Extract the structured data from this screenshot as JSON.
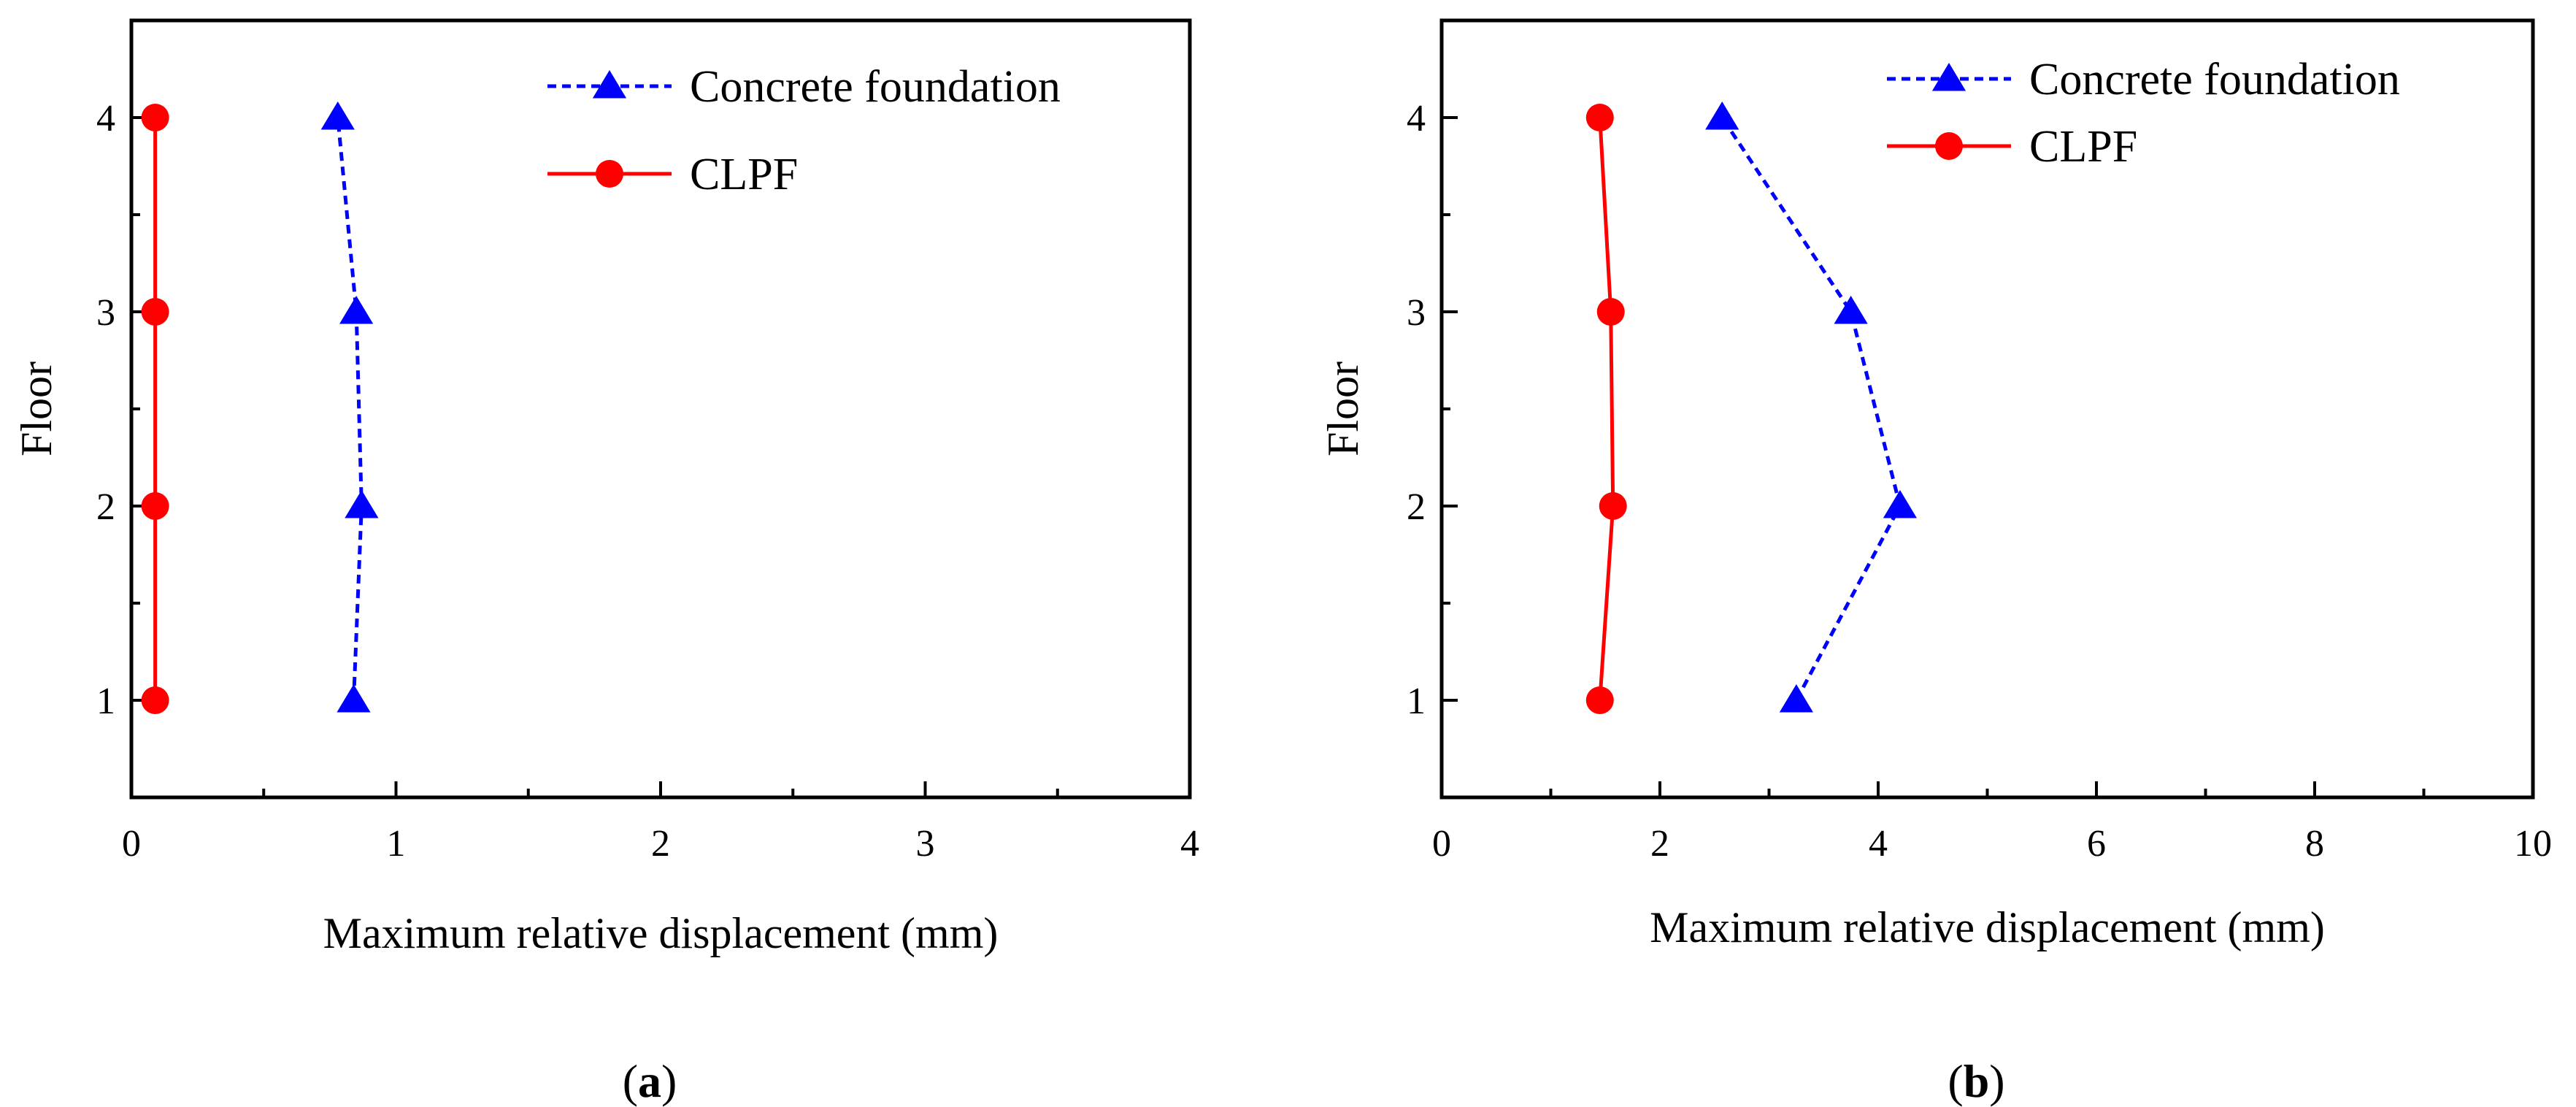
{
  "chart_data": [
    {
      "type": "line",
      "panel_label": "a",
      "xlabel": "Maximum relative displacement (mm)",
      "ylabel": "Floor",
      "xlim": [
        0,
        4
      ],
      "ylim": [
        0.5,
        4.5
      ],
      "xticks": [
        0,
        1,
        2,
        3,
        4
      ],
      "yticks": [
        1,
        2,
        3,
        4
      ],
      "grid": false,
      "legend_position": "top-right",
      "series": [
        {
          "name": "Concrete foundation",
          "color": "#0000ff",
          "line_style": "dashed",
          "marker": "triangle",
          "points": [
            {
              "x": 0.84,
              "y": 1
            },
            {
              "x": 0.87,
              "y": 2
            },
            {
              "x": 0.85,
              "y": 3
            },
            {
              "x": 0.78,
              "y": 4
            }
          ]
        },
        {
          "name": "CLPF",
          "color": "#ff0000",
          "line_style": "solid",
          "marker": "circle",
          "points": [
            {
              "x": 0.09,
              "y": 1
            },
            {
              "x": 0.09,
              "y": 2
            },
            {
              "x": 0.09,
              "y": 3
            },
            {
              "x": 0.09,
              "y": 4
            }
          ]
        }
      ]
    },
    {
      "type": "line",
      "panel_label": "b",
      "xlabel": "Maximum relative displacement (mm)",
      "ylabel": "Floor",
      "xlim": [
        0,
        10
      ],
      "ylim": [
        0.5,
        4.5
      ],
      "xticks": [
        0,
        2,
        4,
        6,
        8,
        10
      ],
      "yticks": [
        1,
        2,
        3,
        4
      ],
      "grid": false,
      "legend_position": "top-right",
      "series": [
        {
          "name": "Concrete foundation",
          "color": "#0000ff",
          "line_style": "dashed",
          "marker": "triangle",
          "points": [
            {
              "x": 3.25,
              "y": 1
            },
            {
              "x": 4.2,
              "y": 2
            },
            {
              "x": 3.75,
              "y": 3
            },
            {
              "x": 2.57,
              "y": 4
            }
          ]
        },
        {
          "name": "CLPF",
          "color": "#ff0000",
          "line_style": "solid",
          "marker": "circle",
          "points": [
            {
              "x": 1.45,
              "y": 1
            },
            {
              "x": 1.57,
              "y": 2
            },
            {
              "x": 1.55,
              "y": 3
            },
            {
              "x": 1.45,
              "y": 4
            }
          ]
        }
      ]
    }
  ]
}
